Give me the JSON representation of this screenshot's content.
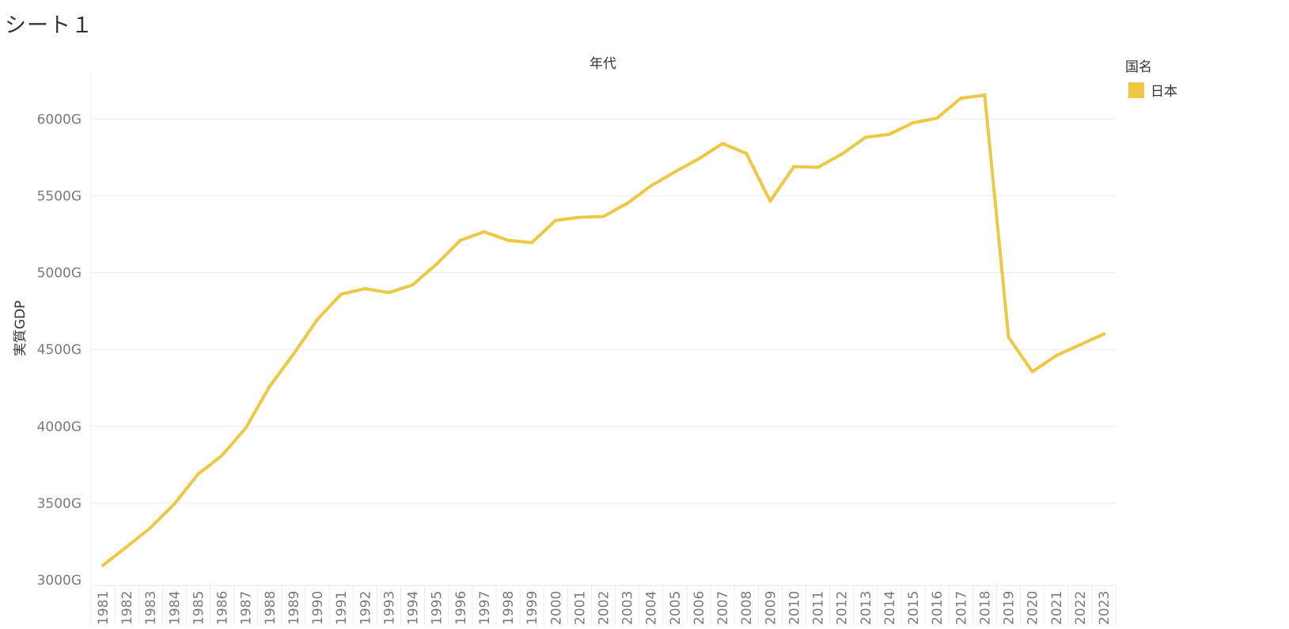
{
  "sheet": {
    "title": "シート１"
  },
  "legend": {
    "title": "国名",
    "items": [
      {
        "label": "日本",
        "color": "#ECC845"
      }
    ]
  },
  "chart_data": {
    "type": "line",
    "title": "年代",
    "xlabel": "年代",
    "ylabel": "実質GDP",
    "ylim": [
      3000,
      6300
    ],
    "y_ticks": [
      3000,
      3500,
      4000,
      4500,
      5000,
      5500,
      6000
    ],
    "y_tick_labels": [
      "3000G",
      "3500G",
      "4000G",
      "4500G",
      "5000G",
      "5500G",
      "6000G"
    ],
    "x": [
      "1981",
      "1982",
      "1983",
      "1984",
      "1985",
      "1986",
      "1987",
      "1988",
      "1989",
      "1990",
      "1991",
      "1992",
      "1993",
      "1994",
      "1995",
      "1996",
      "1997",
      "1998",
      "1999",
      "2000",
      "2001",
      "2002",
      "2003",
      "2004",
      "2005",
      "2006",
      "2007",
      "2008",
      "2009",
      "2010",
      "2011",
      "2012",
      "2013",
      "2014",
      "2015",
      "2016",
      "2017",
      "2018",
      "2019",
      "2020",
      "2021",
      "2022",
      "2023"
    ],
    "grid": true,
    "legend_position": "top-right",
    "series": [
      {
        "name": "日本",
        "color": "#ECC845",
        "values": [
          3095,
          3215,
          3340,
          3495,
          3690,
          3810,
          3990,
          4260,
          4470,
          4695,
          4860,
          4895,
          4870,
          4920,
          5055,
          5210,
          5265,
          5210,
          5195,
          5340,
          5360,
          5365,
          5450,
          5565,
          5655,
          5740,
          5840,
          5775,
          5465,
          5690,
          5685,
          5770,
          5880,
          5900,
          5975,
          6005,
          6135,
          6155,
          4580,
          4355,
          4460,
          4530,
          4600
        ]
      }
    ]
  }
}
